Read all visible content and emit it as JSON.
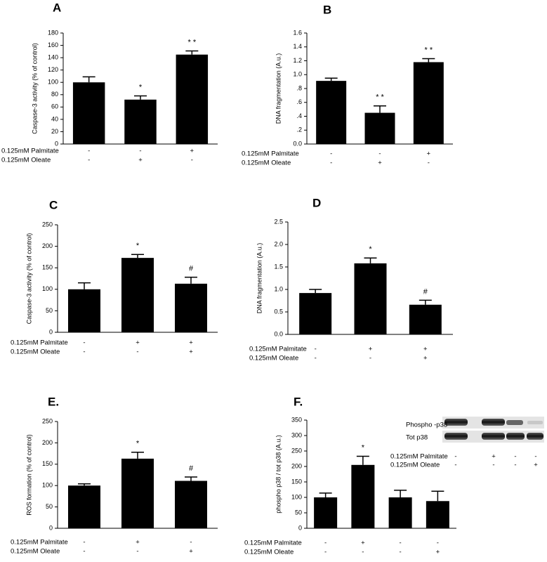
{
  "chart_data": [
    {
      "type": "bar",
      "panel": "A",
      "y_label": "Caspase-3 activity (% of control)",
      "color": "#000000",
      "values": [
        100,
        72,
        145
      ],
      "errors": [
        9,
        6,
        6
      ],
      "annotations": [
        null,
        "*",
        "* *"
      ],
      "ylim": [
        0,
        180
      ],
      "yticks": [
        0,
        20,
        40,
        60,
        80,
        100,
        120,
        140,
        160,
        180
      ],
      "conditions": [
        {
          "name": "0.125mM Palmitate",
          "signs": [
            "-",
            "-",
            "+"
          ]
        },
        {
          "name": "0.125mM Oleate",
          "signs": [
            "-",
            "+",
            "-"
          ]
        }
      ]
    },
    {
      "type": "bar",
      "panel": "B",
      "y_label": "DNA fragmentation (A.u.)",
      "color": "#000000",
      "values": [
        0.91,
        0.45,
        1.18
      ],
      "errors": [
        0.04,
        0.1,
        0.05
      ],
      "annotations": [
        null,
        "* *",
        "* *"
      ],
      "ylim": [
        0,
        1.6
      ],
      "yticks": [
        {
          "value": 0,
          "label": "0.0"
        },
        {
          "value": 0.2,
          "label": ".2"
        },
        {
          "value": 0.4,
          "label": ".4"
        },
        {
          "value": 0.6,
          "label": ".6"
        },
        {
          "value": 0.8,
          "label": ".8"
        },
        {
          "value": 1,
          "label": "1.0"
        },
        1.2,
        1.4,
        1.6
      ],
      "conditions": [
        {
          "name": "0.125mM Palmitate",
          "signs": [
            "-",
            "-",
            "+"
          ]
        },
        {
          "name": "0.125mM Oleate",
          "signs": [
            "-",
            "+",
            "-"
          ]
        }
      ]
    },
    {
      "type": "bar",
      "panel": "C",
      "y_label": "Caspase-3 activity (% of control)",
      "color": "#000000",
      "values": [
        100,
        173,
        113
      ],
      "errors": [
        15,
        8,
        15
      ],
      "annotations": [
        null,
        "*",
        "#"
      ],
      "ylim": [
        0,
        250
      ],
      "yticks": [
        0,
        50,
        100,
        150,
        200,
        250
      ],
      "conditions": [
        {
          "name": "0.125mM Palmitate",
          "signs": [
            "-",
            "+",
            "+"
          ]
        },
        {
          "name": "0.125mM Oleate",
          "signs": [
            "-",
            "-",
            "+"
          ]
        }
      ]
    },
    {
      "type": "bar",
      "panel": "D",
      "y_label": "DNA fragmentation (A.u.)",
      "color": "#000000",
      "values": [
        0.92,
        1.58,
        0.66
      ],
      "errors": [
        0.08,
        0.12,
        0.1
      ],
      "annotations": [
        null,
        "*",
        "#"
      ],
      "ylim": [
        0,
        2.5
      ],
      "yticks": [
        {
          "value": 0,
          "label": "0.0"
        },
        0.5,
        {
          "value": 1,
          "label": "1.0"
        },
        1.5,
        {
          "value": 2,
          "label": "2.0"
        },
        2.5
      ],
      "conditions": [
        {
          "name": "0.125mM Palmitate",
          "signs": [
            "-",
            "+",
            "+"
          ]
        },
        {
          "name": "0.125mM Oleate",
          "signs": [
            "-",
            "-",
            "+"
          ]
        }
      ]
    },
    {
      "type": "bar",
      "panel": "E.",
      "y_label": "ROS formation (% of control)",
      "color": "#000000",
      "values": [
        100,
        163,
        111
      ],
      "errors": [
        4,
        15,
        9
      ],
      "annotations": [
        null,
        "*",
        "#"
      ],
      "ylim": [
        0,
        250
      ],
      "yticks": [
        0,
        50,
        100,
        150,
        200,
        250
      ],
      "conditions": [
        {
          "name": "0.125mM Palmitate",
          "signs": [
            "-",
            "+",
            "-"
          ]
        },
        {
          "name": "0.125mM Oleate",
          "signs": [
            "-",
            "-",
            "+"
          ]
        }
      ]
    },
    {
      "type": "bar",
      "panel": "F.",
      "y_label": "phospho p38 / tot p38 (A.u.)",
      "color": "#000000",
      "values": [
        100,
        205,
        100,
        88
      ],
      "errors": [
        14,
        28,
        23,
        32
      ],
      "annotations": [
        null,
        "*",
        null,
        null
      ],
      "ylim": [
        0,
        350
      ],
      "yticks": [
        0,
        50,
        100,
        150,
        200,
        250,
        300,
        350
      ],
      "conditions": [
        {
          "name": "0.125mM Palmitate",
          "signs": [
            "-",
            "+",
            "-",
            "-"
          ]
        },
        {
          "name": "0.125mM Oleate",
          "signs": [
            "-",
            "-",
            "-",
            "+"
          ]
        }
      ],
      "blot": {
        "rows": [
          "Phospho -p38",
          "Tot p38"
        ],
        "conditions": [
          {
            "name": "0.125mM Palmitate",
            "signs": [
              "-",
              "+",
              "-",
              "-"
            ]
          },
          {
            "name": "0.125mM Oleate",
            "signs": [
              "-",
              "-",
              "-",
              "+"
            ]
          }
        ]
      }
    }
  ]
}
